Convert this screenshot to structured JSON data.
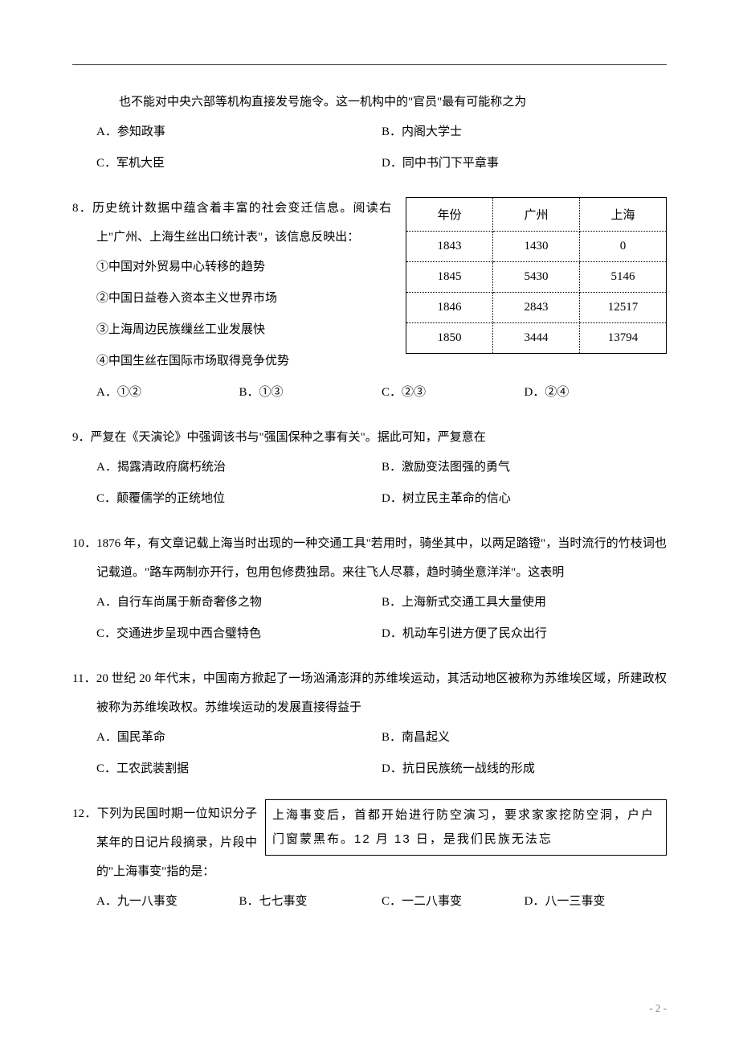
{
  "q7": {
    "cont": "也不能对中央六部等机构直接发号施令。这一机构中的\"官员\"最有可能称之为",
    "A": "A．参知政事",
    "B": "B．内阁大学士",
    "C": "C．军机大臣",
    "D": "D．同中书门下平章事"
  },
  "q8": {
    "stem1": "8．历史统计数据中蕴含着丰富的社会变迁信息。阅读右上\"广州、上海生丝出口统计表\"，该信息反映出：",
    "c1": "①中国对外贸易中心转移的趋势",
    "c2": "②中国日益卷入资本主义世界市场",
    "c3": "③上海周边民族缫丝工业发展快",
    "c4": "④中国生丝在国际市场取得竞争优势",
    "A": "A．①②",
    "B": "B．①③",
    "C": "C．②③",
    "D": "D．②④",
    "table": {
      "h1": "年份",
      "h2": "广州",
      "h3": "上海",
      "r1c1": "1843",
      "r1c2": "1430",
      "r1c3": "0",
      "r2c1": "1845",
      "r2c2": "5430",
      "r2c3": "5146",
      "r3c1": "1846",
      "r3c2": "2843",
      "r3c3": "12517",
      "r4c1": "1850",
      "r4c2": "3444",
      "r4c3": "13794"
    }
  },
  "q9": {
    "stem": "9．严复在《天演论》中强调该书与\"强国保种之事有关\"。据此可知，严复意在",
    "A": "A．揭露清政府腐朽统治",
    "B": "B．激励变法图强的勇气",
    "C": "C．颠覆儒学的正统地位",
    "D": "D．树立民主革命的信心"
  },
  "q10": {
    "stem": "10．1876 年，有文章记载上海当时出现的一种交通工具\"若用时，骑坐其中，以两足踏镫\"，当时流行的竹枝词也记载道。\"路车两制亦开行，包用包修费独昂。来往飞人尽慕，趋时骑坐意洋洋\"。这表明",
    "A": "A．自行车尚属于新奇奢侈之物",
    "B": "B．上海新式交通工具大量使用",
    "C": "C．交通进步呈现中西合璧特色",
    "D": "D．机动车引进方便了民众出行"
  },
  "q11": {
    "stem": "11．20 世纪 20 年代末，中国南方掀起了一场汹涌澎湃的苏维埃运动，其活动地区被称为苏维埃区域，所建政权被称为苏维埃政权。苏维埃运动的发展直接得益于",
    "A": "A．国民革命",
    "B": "B．南昌起义",
    "C": "C．工农武装割据",
    "D": "D．抗日民族统一战线的形成"
  },
  "q12": {
    "stem": "12．下列为民国时期一位知识分子某年的日记片段摘录，片段中的\"上海事变\"指的是：",
    "box": "上海事变后，首都开始进行防空演习，要求家家挖防空洞，户户门窗蒙黑布。12 月 13 日，是我们民族无法忘",
    "A": "A．九一八事变",
    "B": "B．七七事变",
    "C": "C．一二八事变",
    "D": "D．八一三事变"
  },
  "footer": "- 2 -"
}
